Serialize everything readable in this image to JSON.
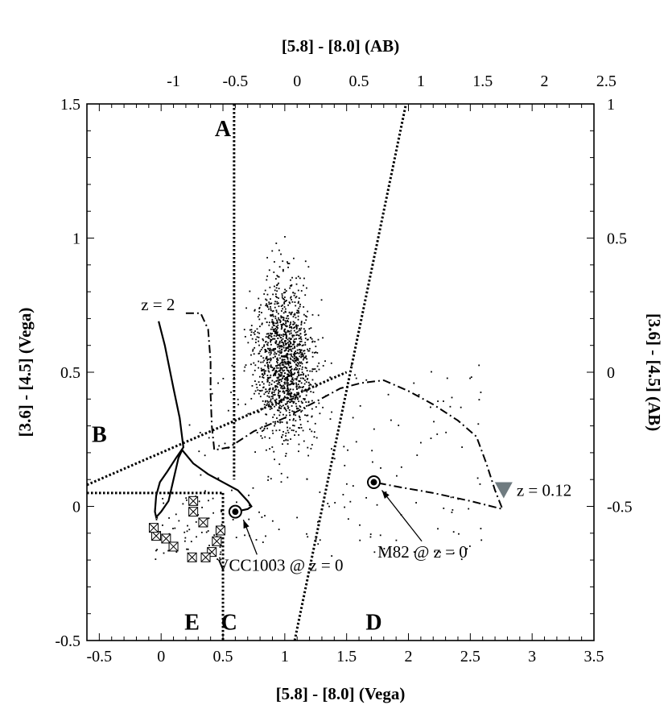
{
  "chart_data": {
    "type": "scatter",
    "title": "",
    "xlabel": "[5.8] - [8.0] (Vega)",
    "ylabel": "[3.6] - [4.5] (Vega)",
    "x2label": "[5.8] - [8.0] (AB)",
    "y2label": "[3.6] - [4.5] (AB)",
    "xlim": [
      -0.6,
      3.5
    ],
    "ylim": [
      -0.5,
      1.5
    ],
    "x_ticks": [
      "-0.5",
      "0",
      "0.5",
      "1",
      "1.5",
      "2",
      "2.5",
      "3",
      "3.5"
    ],
    "y_ticks": [
      "-0.5",
      "0",
      "0.5",
      "1",
      "1.5"
    ],
    "x2_ticks": [
      "-1",
      "-0.5",
      "0",
      "0.5",
      "1",
      "1.5",
      "2",
      "2.5"
    ],
    "y2_ticks": [
      "-0.5",
      "0",
      "0.5",
      "1"
    ],
    "region_labels": [
      {
        "text": "A",
        "x": 0.5,
        "y": 1.41
      },
      {
        "text": "B",
        "x": -0.5,
        "y": 0.27
      },
      {
        "text": "C",
        "x": 0.55,
        "y": -0.43
      },
      {
        "text": "D",
        "x": 1.72,
        "y": -0.43
      },
      {
        "text": "E",
        "x": 0.25,
        "y": -0.43
      }
    ],
    "boundaries": [
      {
        "name": "A-left",
        "points": [
          [
            0.59,
            1.5
          ],
          [
            0.59,
            0.1
          ]
        ]
      },
      {
        "name": "A-right",
        "points": [
          [
            1.08,
            -0.5
          ],
          [
            1.98,
            1.5
          ]
        ]
      },
      {
        "name": "B-diagonal",
        "points": [
          [
            -0.6,
            0.08
          ],
          [
            1.5,
            0.5
          ]
        ]
      },
      {
        "name": "E-top",
        "points": [
          [
            -0.6,
            0.05
          ],
          [
            0.5,
            0.05
          ]
        ]
      },
      {
        "name": "E-right",
        "points": [
          [
            0.5,
            0.05
          ],
          [
            0.5,
            -0.5
          ]
        ]
      }
    ],
    "tracks": [
      {
        "name": "vcc1003-track",
        "style": "solid",
        "points": [
          [
            -0.02,
            0.69
          ],
          [
            0.03,
            0.6
          ],
          [
            0.1,
            0.44
          ],
          [
            0.15,
            0.33
          ],
          [
            0.18,
            0.22
          ],
          [
            0.12,
            0.18
          ],
          [
            0.05,
            0.13
          ],
          [
            -0.01,
            0.09
          ],
          [
            -0.04,
            0.04
          ],
          [
            -0.05,
            -0.02
          ],
          [
            -0.04,
            -0.04
          ],
          [
            0.0,
            -0.02
          ],
          [
            0.06,
            0.02
          ],
          [
            0.1,
            0.1
          ],
          [
            0.14,
            0.18
          ],
          [
            0.17,
            0.21
          ],
          [
            0.26,
            0.16
          ],
          [
            0.38,
            0.12
          ],
          [
            0.5,
            0.09
          ],
          [
            0.62,
            0.06
          ],
          [
            0.7,
            0.02
          ],
          [
            0.73,
            0.0
          ],
          [
            0.7,
            -0.01
          ],
          [
            0.6,
            -0.02
          ]
        ]
      },
      {
        "name": "z2-track",
        "style": "dashdot",
        "points": [
          [
            0.2,
            0.72
          ],
          [
            0.32,
            0.72
          ],
          [
            0.38,
            0.66
          ],
          [
            0.4,
            0.54
          ],
          [
            0.4,
            0.42
          ],
          [
            0.41,
            0.3
          ],
          [
            0.43,
            0.21
          ],
          [
            0.55,
            0.22
          ],
          [
            0.75,
            0.28
          ],
          [
            1.0,
            0.33
          ],
          [
            1.25,
            0.39
          ],
          [
            1.45,
            0.44
          ],
          [
            1.62,
            0.46
          ],
          [
            1.8,
            0.47
          ],
          [
            2.0,
            0.43
          ],
          [
            2.2,
            0.38
          ],
          [
            2.4,
            0.32
          ],
          [
            2.55,
            0.26
          ],
          [
            2.63,
            0.16
          ],
          [
            2.7,
            0.06
          ],
          [
            2.76,
            -0.01
          ],
          [
            2.5,
            0.02
          ],
          [
            2.2,
            0.05
          ],
          [
            1.95,
            0.07
          ],
          [
            1.72,
            0.09
          ]
        ]
      }
    ],
    "markers": [
      {
        "label": "VCC1003 @ z = 0",
        "x": 0.6,
        "y": -0.02,
        "text_x": 0.45,
        "text_y": -0.24
      },
      {
        "label": "M82 @ z = 0",
        "x": 1.72,
        "y": 0.09,
        "text_x": 1.75,
        "text_y": -0.19
      },
      {
        "label": "z = 0.12",
        "x": 2.77,
        "y": 0.06,
        "shape": "triangle"
      },
      {
        "label": "z = 2",
        "x": 0.0,
        "y": 0.75
      }
    ],
    "boxed_points": [
      [
        0.26,
        0.02
      ],
      [
        0.26,
        -0.02
      ],
      [
        0.34,
        -0.06
      ],
      [
        0.45,
        -0.13
      ],
      [
        0.41,
        -0.17
      ],
      [
        0.36,
        -0.19
      ],
      [
        0.25,
        -0.19
      ],
      [
        0.04,
        -0.12
      ],
      [
        0.1,
        -0.15
      ],
      [
        -0.04,
        -0.11
      ],
      [
        -0.06,
        -0.08
      ],
      [
        0.48,
        -0.09
      ]
    ]
  }
}
